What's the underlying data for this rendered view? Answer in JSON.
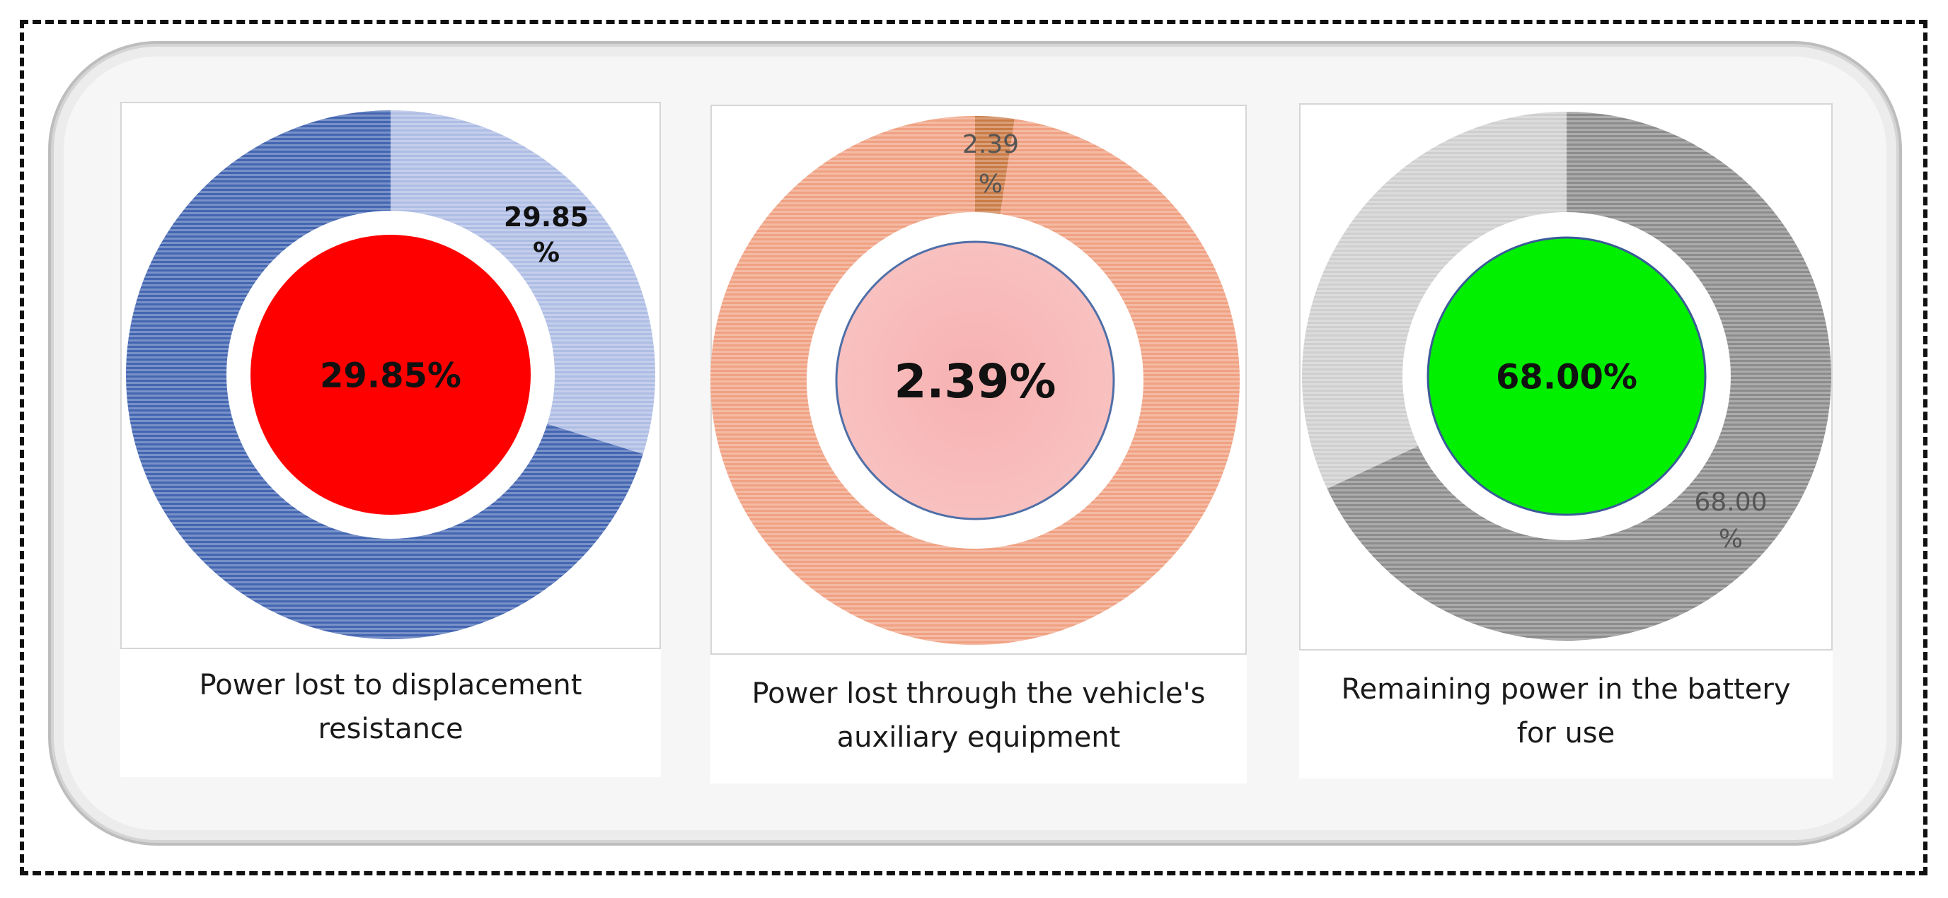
{
  "chart_data": [
    {
      "type": "pie",
      "variant": "donut",
      "slices": [
        {
          "label": "29.85\n%",
          "value": 29.85,
          "color": "#aebde4",
          "highlight": true
        },
        {
          "label": "",
          "value": 70.15,
          "color": "#4466b2",
          "highlight": false
        }
      ],
      "center_label": "29.85%",
      "center_color": "#ff0000",
      "caption": "Power lost to displacement resistance",
      "caption_lines": [
        "Power lost to displacement",
        "resistance"
      ]
    },
    {
      "type": "pie",
      "variant": "donut",
      "slices": [
        {
          "label": "2.39\n%",
          "value": 2.39,
          "color": "#c97a45",
          "highlight": true
        },
        {
          "label": "",
          "value": 97.61,
          "color": "#f0a182",
          "highlight": false
        }
      ],
      "center_label": "2.39%",
      "center_color": "#f7b1b1",
      "caption": "Power lost through the vehicle's auxiliary equipment",
      "caption_lines": [
        "Power lost through the vehicle's",
        "auxiliary equipment"
      ]
    },
    {
      "type": "pie",
      "variant": "donut",
      "slices": [
        {
          "label": "68.00\n%",
          "value": 68.0,
          "color": "#8c8c8c",
          "highlight": true
        },
        {
          "label": "",
          "value": 32.0,
          "color": "#cfcfcf",
          "highlight": false
        }
      ],
      "center_label": "68.00%",
      "center_color": "#00f000",
      "caption": "Remaining power in the battery for use",
      "caption_lines": [
        "Remaining power in the battery",
        "for use"
      ]
    }
  ]
}
